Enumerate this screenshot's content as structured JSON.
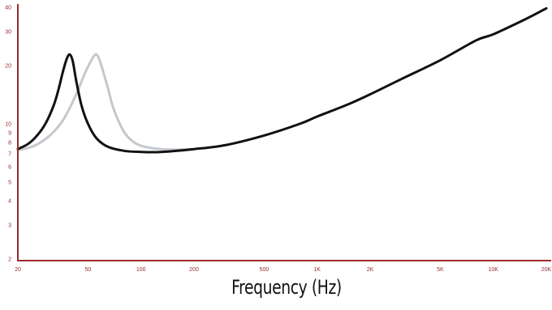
{
  "chart_data": {
    "type": "line",
    "title": "",
    "xlabel": "Frequency (Hz)",
    "ylabel": "",
    "x_scale": "log",
    "y_scale": "log",
    "xlim": [
      20,
      20000
    ],
    "ylim": [
      2,
      40
    ],
    "grid": false,
    "x_ticks": [
      {
        "value": 20,
        "label": "20"
      },
      {
        "value": 50,
        "label": "50"
      },
      {
        "value": 100,
        "label": "100"
      },
      {
        "value": 200,
        "label": "200"
      },
      {
        "value": 500,
        "label": "500"
      },
      {
        "value": 1000,
        "label": "1K"
      },
      {
        "value": 2000,
        "label": "2K"
      },
      {
        "value": 5000,
        "label": "5K"
      },
      {
        "value": 10000,
        "label": "10K"
      },
      {
        "value": 20000,
        "label": "20K"
      }
    ],
    "y_ticks": [
      {
        "value": 2,
        "label": "2"
      },
      {
        "value": 3,
        "label": "3"
      },
      {
        "value": 4,
        "label": "4"
      },
      {
        "value": 5,
        "label": "5"
      },
      {
        "value": 6,
        "label": "6"
      },
      {
        "value": 7,
        "label": "7"
      },
      {
        "value": 8,
        "label": "8"
      },
      {
        "value": 9,
        "label": "9"
      },
      {
        "value": 10,
        "label": "10"
      },
      {
        "value": 20,
        "label": "20"
      },
      {
        "value": 30,
        "label": "30"
      },
      {
        "value": 40,
        "label": "40"
      }
    ],
    "series": [
      {
        "color": "#c3c8ce",
        "points": [
          [
            20,
            7.3
          ],
          [
            24,
            7.6
          ],
          [
            28,
            8.2
          ],
          [
            32,
            9.1
          ],
          [
            36,
            10.4
          ],
          [
            40,
            12.4
          ],
          [
            44,
            15.0
          ],
          [
            48,
            18.2
          ],
          [
            52,
            21.1
          ],
          [
            55,
            22.8
          ],
          [
            57,
            22.3
          ],
          [
            60,
            19.6
          ],
          [
            65,
            15.2
          ],
          [
            70,
            11.9
          ],
          [
            80,
            9.1
          ],
          [
            90,
            8.1
          ],
          [
            100,
            7.7
          ],
          [
            120,
            7.45
          ],
          [
            150,
            7.35
          ],
          [
            200,
            7.4
          ]
        ]
      },
      {
        "color": "#111111",
        "points": [
          [
            20,
            7.4
          ],
          [
            23,
            7.9
          ],
          [
            26,
            8.8
          ],
          [
            29,
            10.2
          ],
          [
            32,
            12.5
          ],
          [
            34,
            15.0
          ],
          [
            36,
            18.5
          ],
          [
            38,
            21.8
          ],
          [
            39.5,
            22.8
          ],
          [
            41,
            21.0
          ],
          [
            43,
            16.5
          ],
          [
            46,
            12.4
          ],
          [
            50,
            10.0
          ],
          [
            56,
            8.4
          ],
          [
            65,
            7.6
          ],
          [
            80,
            7.25
          ],
          [
            100,
            7.15
          ],
          [
            130,
            7.15
          ],
          [
            200,
            7.4
          ],
          [
            300,
            7.75
          ],
          [
            500,
            8.7
          ],
          [
            800,
            10.0
          ],
          [
            1000,
            10.9
          ],
          [
            1500,
            12.6
          ],
          [
            2000,
            14.2
          ],
          [
            3000,
            17.0
          ],
          [
            5000,
            21.3
          ],
          [
            8000,
            27.0
          ],
          [
            10000,
            29.0
          ],
          [
            15000,
            34.5
          ],
          [
            20000,
            39.5
          ]
        ]
      }
    ]
  }
}
